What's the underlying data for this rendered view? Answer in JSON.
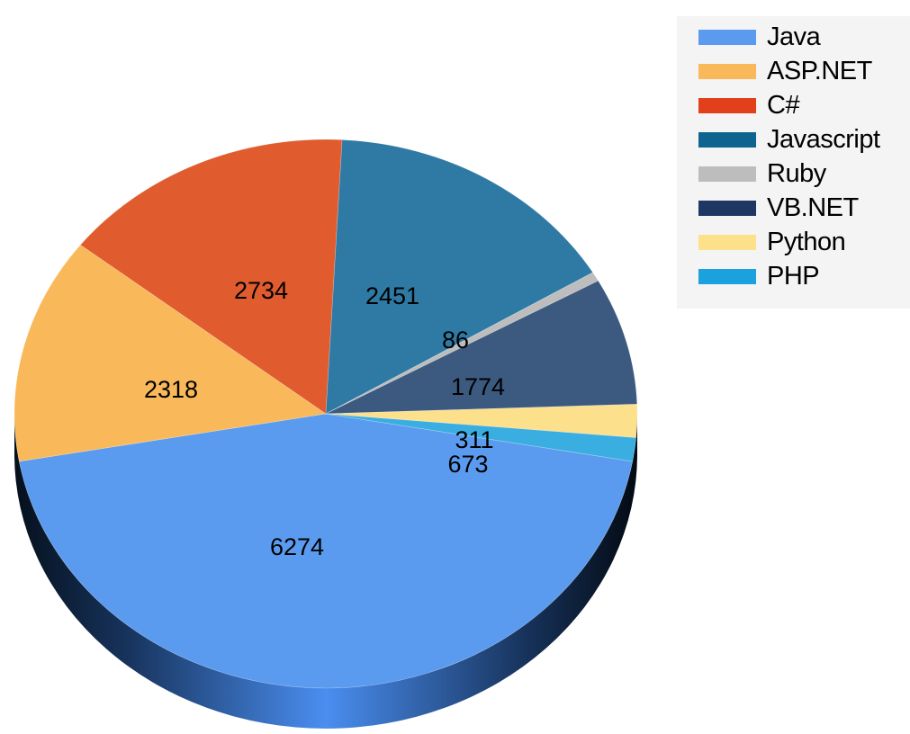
{
  "chart_data": {
    "type": "pie",
    "style": "3d",
    "categories": [
      "Java",
      "ASP.NET",
      "C#",
      "Javascript",
      "Ruby",
      "VB.NET",
      "Python",
      "PHP"
    ],
    "values": [
      6274,
      2318,
      2734,
      2451,
      86,
      1774,
      311,
      673
    ],
    "colors": [
      "#5b9bef",
      "#f9b95a",
      "#e05c2e",
      "#2e7aa4",
      "#bdbdbd",
      "#3c5a80",
      "#fce08c",
      "#3aaee1"
    ],
    "legend_colors": [
      "#5b9bef",
      "#f9b95a",
      "#e2401a",
      "#0e648f",
      "#bdbdbd",
      "#1f3763",
      "#fde08a",
      "#1aa1de"
    ],
    "legend_position": "top-right",
    "data_labels": [
      "6274",
      "2318",
      "2734",
      "2451",
      "86",
      "1774",
      "311",
      "673"
    ]
  }
}
